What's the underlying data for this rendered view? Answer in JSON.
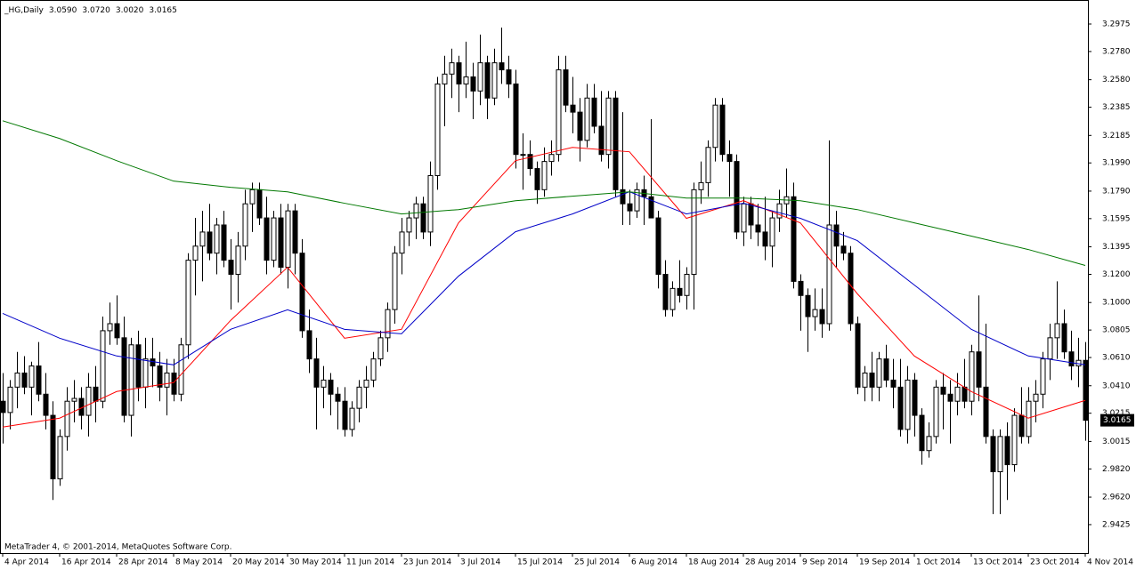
{
  "chart_data": {
    "type": "candlestick",
    "title": "_HG,Daily",
    "header_values": [
      {
        "value": 3.059,
        "label": "3.0590"
      },
      {
        "value": 3.072,
        "label": "3.0720"
      },
      {
        "value": 3.002,
        "label": "3.0020"
      },
      3.0165
    ],
    "note": "MetaTrader 4, © 2001-2014, MetaQuotes Software Corp.",
    "last_price": 3.0165,
    "categories": [
      "4 Apr 2014",
      null,
      null,
      null,
      null,
      null,
      null,
      null,
      "16 Apr 2014",
      null,
      null,
      null,
      null,
      null,
      null,
      null,
      "28 Apr 2014",
      null,
      null,
      null,
      null,
      null,
      null,
      null,
      "8 May 2014",
      null,
      null,
      null,
      null,
      null,
      null,
      null,
      "20 May 2014",
      null,
      null,
      null,
      null,
      null,
      null,
      null,
      "30 May 2014",
      null,
      null,
      null,
      null,
      null,
      null,
      null,
      "11 Jun 2014",
      null,
      null,
      null,
      null,
      null,
      null,
      null,
      "23 Jun 2014",
      null,
      null,
      null,
      null,
      null,
      null,
      null,
      "3 Jul 2014",
      null,
      null,
      null,
      null,
      null,
      null,
      null,
      "15 Jul 2014",
      null,
      null,
      null,
      null,
      null,
      null,
      null,
      "25 Jul 2014",
      null,
      null,
      null,
      null,
      null,
      null,
      null,
      "6 Aug 2014",
      null,
      null,
      null,
      null,
      null,
      null,
      null,
      "18 Aug 2014",
      null,
      null,
      null,
      null,
      null,
      null,
      null,
      "28 Aug 2014",
      null,
      null,
      null,
      null,
      null,
      null,
      null,
      "9 Sep 2014",
      null,
      null,
      null,
      null,
      null,
      null,
      null,
      "19 Sep 2014",
      null,
      null,
      null,
      null,
      null,
      null,
      null,
      "1 Oct 2014",
      null,
      null,
      null,
      null,
      null,
      null,
      null,
      "13 Oct 2014",
      null,
      null,
      null,
      null,
      null,
      null,
      null,
      "23 Oct 2014",
      null,
      null,
      null,
      null,
      null,
      null,
      null,
      "4 Nov 2014"
    ],
    "open": [
      3.03,
      3.022,
      3.04,
      3.05,
      3.04,
      3.055,
      3.035,
      3.02,
      2.975,
      3.005,
      3.03,
      3.032,
      3.02,
      3.04,
      3.03,
      3.08,
      3.085,
      3.075,
      3.02,
      3.07,
      3.04,
      3.06,
      3.055,
      3.04,
      3.05,
      3.035,
      3.07,
      3.13,
      3.14,
      3.15,
      3.135,
      3.155,
      3.13,
      3.12,
      3.14,
      3.17,
      3.18,
      3.16,
      3.13,
      3.16,
      3.125,
      3.165,
      3.135,
      3.08,
      3.06,
      3.04,
      3.045,
      3.035,
      3.03,
      3.01,
      3.025,
      3.04,
      3.045,
      3.06,
      3.075,
      3.095,
      3.135,
      3.15,
      3.16,
      3.17,
      3.15,
      3.19,
      3.255,
      3.262,
      3.27,
      3.255,
      3.26,
      3.25,
      3.27,
      3.245,
      3.27,
      3.265,
      3.255,
      3.205,
      3.205,
      3.195,
      3.18,
      3.2,
      3.205,
      3.265,
      3.24,
      3.235,
      3.215,
      3.245,
      3.225,
      3.205,
      3.245,
      3.18,
      3.17,
      3.165,
      3.18,
      3.175,
      3.16,
      3.12,
      3.095,
      3.11,
      3.105,
      3.12,
      3.18,
      3.185,
      3.21,
      3.24,
      3.205,
      3.2,
      3.15,
      3.17,
      3.155,
      3.15,
      3.14,
      3.16,
      3.17,
      3.175,
      3.115,
      3.105,
      3.09,
      3.095,
      3.085,
      3.155,
      3.14,
      3.135,
      3.085,
      3.04,
      3.05,
      3.04,
      3.06,
      3.045,
      3.04,
      3.01,
      3.045,
      3.02,
      2.995,
      3.005,
      3.04,
      3.035,
      3.03,
      3.04,
      3.03,
      3.065,
      3.04,
      3.005,
      2.98,
      3.005,
      2.985,
      3.02,
      3.005,
      3.03,
      3.035,
      3.06,
      3.075,
      3.085,
      3.065,
      3.055,
      3.059
    ],
    "high": [
      3.05,
      3.045,
      3.065,
      3.062,
      3.058,
      3.072,
      3.05,
      3.03,
      3.01,
      3.04,
      3.045,
      3.04,
      3.05,
      3.055,
      3.09,
      3.1,
      3.105,
      3.09,
      3.075,
      3.08,
      3.075,
      3.075,
      3.065,
      3.06,
      3.06,
      3.075,
      3.135,
      3.16,
      3.165,
      3.17,
      3.16,
      3.165,
      3.145,
      3.15,
      3.18,
      3.185,
      3.185,
      3.175,
      3.165,
      3.17,
      3.17,
      3.17,
      3.145,
      3.095,
      3.075,
      3.055,
      3.05,
      3.04,
      3.04,
      3.03,
      3.045,
      3.055,
      3.065,
      3.08,
      3.1,
      3.14,
      3.16,
      3.165,
      3.175,
      3.175,
      3.2,
      3.26,
      3.275,
      3.28,
      3.275,
      3.285,
      3.27,
      3.29,
      3.275,
      3.28,
      3.295,
      3.275,
      3.265,
      3.22,
      3.215,
      3.2,
      3.21,
      3.215,
      3.275,
      3.275,
      3.26,
      3.245,
      3.255,
      3.255,
      3.25,
      3.25,
      3.25,
      3.235,
      3.18,
      3.185,
      3.19,
      3.23,
      3.165,
      3.13,
      3.115,
      3.13,
      3.125,
      3.185,
      3.2,
      3.215,
      3.245,
      3.245,
      3.215,
      3.205,
      3.175,
      3.175,
      3.17,
      3.175,
      3.165,
      3.18,
      3.195,
      3.185,
      3.12,
      3.11,
      3.11,
      3.11,
      3.215,
      3.165,
      3.15,
      3.14,
      3.09,
      3.055,
      3.065,
      3.065,
      3.07,
      3.06,
      3.06,
      3.055,
      3.05,
      3.025,
      3.015,
      3.045,
      3.05,
      3.045,
      3.05,
      3.06,
      3.07,
      3.105,
      3.085,
      3.01,
      3.01,
      3.015,
      3.025,
      3.04,
      3.04,
      3.045,
      3.065,
      3.085,
      3.115,
      3.095,
      3.08,
      3.075,
      3.072
    ],
    "low": [
      3.0,
      3.01,
      3.025,
      3.035,
      3.02,
      3.03,
      3.01,
      2.96,
      2.97,
      2.995,
      3.015,
      3.01,
      3.005,
      3.015,
      3.025,
      3.07,
      3.07,
      3.015,
      3.005,
      3.03,
      3.025,
      3.04,
      3.03,
      3.02,
      3.03,
      3.03,
      3.06,
      3.105,
      3.115,
      3.13,
      3.12,
      3.125,
      3.095,
      3.1,
      3.13,
      3.15,
      3.155,
      3.12,
      3.125,
      3.12,
      3.11,
      3.12,
      3.075,
      3.05,
      3.01,
      3.025,
      3.02,
      3.01,
      3.005,
      3.005,
      3.015,
      3.025,
      3.04,
      3.055,
      3.065,
      3.085,
      3.12,
      3.14,
      3.145,
      3.145,
      3.14,
      3.18,
      3.225,
      3.245,
      3.235,
      3.245,
      3.23,
      3.24,
      3.23,
      3.24,
      3.255,
      3.245,
      3.195,
      3.18,
      3.19,
      3.17,
      3.175,
      3.19,
      3.2,
      3.235,
      3.22,
      3.2,
      3.21,
      3.22,
      3.2,
      3.195,
      3.175,
      3.155,
      3.155,
      3.16,
      3.155,
      3.16,
      3.11,
      3.09,
      3.09,
      3.1,
      3.095,
      3.095,
      3.17,
      3.175,
      3.2,
      3.2,
      3.175,
      3.145,
      3.14,
      3.145,
      3.14,
      3.13,
      3.125,
      3.15,
      3.16,
      3.11,
      3.08,
      3.065,
      3.08,
      3.075,
      3.08,
      3.125,
      3.13,
      3.08,
      3.035,
      3.03,
      3.03,
      3.03,
      3.04,
      3.025,
      3.005,
      3.0,
      3.005,
      2.985,
      2.99,
      3.0,
      3.01,
      3.0,
      3.02,
      3.025,
      3.02,
      3.03,
      3.0,
      2.95,
      2.95,
      2.96,
      2.98,
      3.0,
      3.0,
      3.015,
      3.025,
      3.045,
      3.06,
      3.06,
      3.045,
      3.04,
      3.002
    ],
    "close": [
      3.022,
      3.04,
      3.05,
      3.04,
      3.055,
      3.035,
      3.02,
      2.975,
      3.005,
      3.03,
      3.032,
      3.02,
      3.04,
      3.03,
      3.08,
      3.085,
      3.075,
      3.02,
      3.07,
      3.04,
      3.06,
      3.055,
      3.04,
      3.05,
      3.035,
      3.07,
      3.13,
      3.14,
      3.15,
      3.135,
      3.155,
      3.13,
      3.12,
      3.14,
      3.17,
      3.18,
      3.16,
      3.13,
      3.16,
      3.125,
      3.165,
      3.135,
      3.08,
      3.06,
      3.04,
      3.045,
      3.035,
      3.03,
      3.01,
      3.025,
      3.04,
      3.045,
      3.06,
      3.075,
      3.095,
      3.135,
      3.15,
      3.16,
      3.17,
      3.15,
      3.19,
      3.255,
      3.262,
      3.27,
      3.255,
      3.26,
      3.25,
      3.27,
      3.245,
      3.27,
      3.265,
      3.255,
      3.205,
      3.205,
      3.195,
      3.18,
      3.2,
      3.205,
      3.265,
      3.24,
      3.235,
      3.215,
      3.245,
      3.225,
      3.205,
      3.245,
      3.18,
      3.17,
      3.165,
      3.18,
      3.175,
      3.16,
      3.12,
      3.095,
      3.11,
      3.105,
      3.12,
      3.18,
      3.185,
      3.21,
      3.24,
      3.205,
      3.2,
      3.15,
      3.17,
      3.155,
      3.15,
      3.14,
      3.16,
      3.17,
      3.175,
      3.115,
      3.105,
      3.09,
      3.095,
      3.085,
      3.155,
      3.14,
      3.135,
      3.085,
      3.04,
      3.05,
      3.04,
      3.06,
      3.045,
      3.04,
      3.01,
      3.045,
      3.02,
      2.995,
      3.005,
      3.04,
      3.035,
      3.03,
      3.04,
      3.03,
      3.065,
      3.04,
      3.005,
      2.98,
      3.005,
      2.985,
      3.02,
      3.005,
      3.03,
      3.035,
      3.06,
      3.075,
      3.085,
      3.065,
      3.055,
      3.059,
      3.0165
    ],
    "bull_color": "#ffffff",
    "bear_color": "#000000",
    "candle_edge": "#000000",
    "series": [
      {
        "color": "#ff0000",
        "x": [
          "4 Apr 2014",
          "16 Apr 2014",
          "28 Apr 2014",
          "8 May 2014",
          "20 May 2014",
          "30 May 2014",
          "11 Jun 2014",
          "23 Jun 2014",
          "3 Jul 2014",
          "15 Jul 2014",
          "25 Jul 2014",
          "6 Aug 2014",
          "18 Aug 2014",
          "28 Aug 2014",
          "9 Sep 2014",
          "19 Sep 2014",
          "1 Oct 2014",
          "13 Oct 2014",
          "23 Oct 2014",
          "4 Nov 2014"
        ],
        "values": [
          3.0117,
          3.018,
          3.0369,
          3.0432,
          3.0873,
          3.125,
          3.0747,
          3.081,
          3.1565,
          3.2006,
          3.21,
          3.2069,
          3.1597,
          3.1722,
          3.1565,
          3.1062,
          3.0621,
          3.0369,
          3.018,
          3.0306
        ]
      },
      {
        "color": "#0000c8",
        "x": [
          "4 Apr 2014",
          "16 Apr 2014",
          "28 Apr 2014",
          "8 May 2014",
          "20 May 2014",
          "30 May 2014",
          "11 Jun 2014",
          "23 Jun 2014",
          "3 Jul 2014",
          "15 Jul 2014",
          "25 Jul 2014",
          "6 Aug 2014",
          "18 Aug 2014",
          "28 Aug 2014",
          "9 Sep 2014",
          "19 Sep 2014",
          "1 Oct 2014",
          "13 Oct 2014",
          "23 Oct 2014",
          "4 Nov 2014"
        ],
        "values": [
          3.0923,
          3.0747,
          3.0621,
          3.0558,
          3.081,
          3.0948,
          3.081,
          3.0778,
          3.1187,
          3.1502,
          3.1628,
          3.1785,
          3.1628,
          3.1704,
          3.1597,
          3.1439,
          3.1124,
          3.081,
          3.0621,
          3.0558
        ]
      },
      {
        "color": "#007800",
        "x": [
          "4 Apr 2014",
          "16 Apr 2014",
          "28 Apr 2014",
          "8 May 2014",
          "20 May 2014",
          "30 May 2014",
          "11 Jun 2014",
          "23 Jun 2014",
          "3 Jul 2014",
          "15 Jul 2014",
          "25 Jul 2014",
          "6 Aug 2014",
          "18 Aug 2014",
          "28 Aug 2014",
          "9 Sep 2014",
          "19 Sep 2014",
          "1 Oct 2014",
          "13 Oct 2014",
          "23 Oct 2014",
          "4 Nov 2014"
        ],
        "values": [
          3.2289,
          3.2163,
          3.2006,
          3.1861,
          3.1817,
          3.1785,
          3.1704,
          3.1628,
          3.1659,
          3.1722,
          3.1754,
          3.1785,
          3.1741,
          3.1741,
          3.1722,
          3.1659,
          3.1565,
          3.1471,
          3.1376,
          3.1263
        ]
      }
    ],
    "ylim": [
      2.9223,
      3.3139
    ],
    "yticks": [
      3.2975,
      {
        "value": 3.278,
        "label": "3.2780"
      },
      {
        "value": 3.258,
        "label": "3.2580"
      },
      3.2385,
      3.2185,
      {
        "value": 3.199,
        "label": "3.1990"
      },
      {
        "value": 3.179,
        "label": "3.1790"
      },
      3.1595,
      3.1395,
      {
        "value": 3.12,
        "label": "3.1200"
      },
      {
        "value": 3.1,
        "label": "3.1000"
      },
      3.0805,
      {
        "value": 3.061,
        "label": "3.0610"
      },
      {
        "value": 3.041,
        "label": "3.0410"
      },
      3.0215,
      3.0015,
      {
        "value": 2.982,
        "label": "2.9820"
      },
      {
        "value": 2.962,
        "label": "2.9620"
      },
      2.9425
    ],
    "grid": false
  }
}
